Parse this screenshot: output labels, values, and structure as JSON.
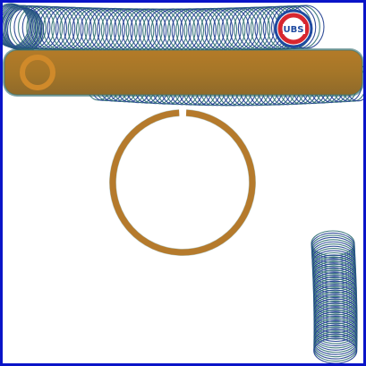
{
  "logo": {
    "text": "UBS"
  },
  "colors": {
    "border": "#0a14c8",
    "ring_blue": "#1f3d8f",
    "ring_teal": "#2f6f73",
    "slider_bar": "#a8772a",
    "cursor_ring": "#b57a2c",
    "logo_red": "#d7262f",
    "logo_blue": "#1f4aa0"
  },
  "icons": {
    "playfield": "osu-playfield",
    "cursor": "cursor-ring-icon",
    "logo": "team-logo-icon"
  }
}
